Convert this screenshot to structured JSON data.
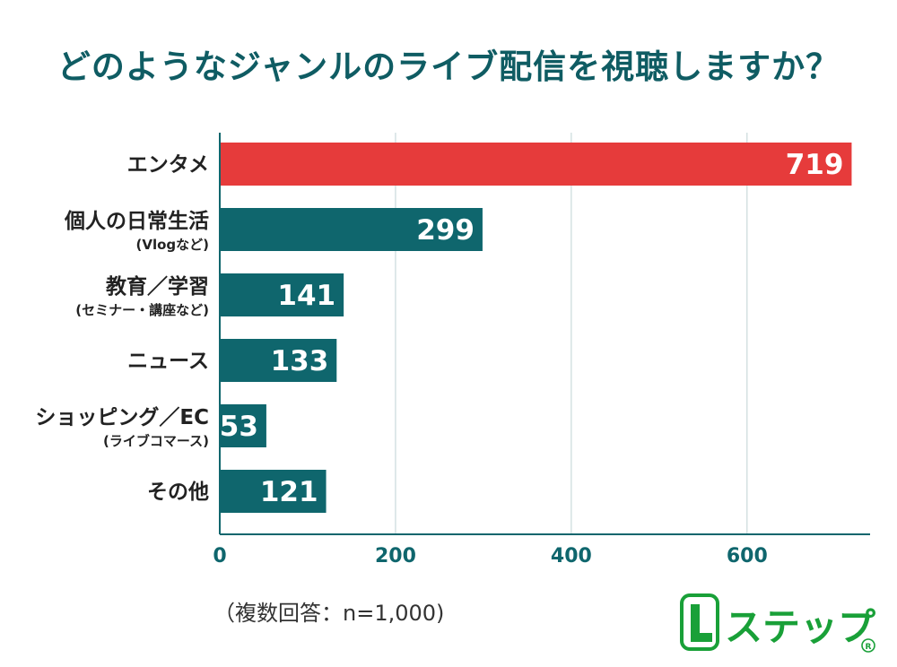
{
  "title": "どのようなジャンルのライブ配信を視聴しますか？",
  "note": "（複数回答：n=1,000)",
  "logo_text": "Lステップ",
  "colors": {
    "highlight": "#e63b3b",
    "bar": "#0f666d",
    "title": "#0f5c63",
    "axis": "#0f666d"
  },
  "chart_data": {
    "type": "bar",
    "orientation": "horizontal",
    "categories": [
      {
        "label": "エンタメ",
        "sub": ""
      },
      {
        "label": "個人の日常生活",
        "sub": "(Vlogなど)"
      },
      {
        "label": "教育／学習",
        "sub": "(セミナー・講座など)"
      },
      {
        "label": "ニュース",
        "sub": ""
      },
      {
        "label": "ショッピング／EC",
        "sub": "(ライブコマース)"
      },
      {
        "label": "その他",
        "sub": ""
      }
    ],
    "values": [
      719,
      299,
      141,
      133,
      53,
      121
    ],
    "highlight_index": 0,
    "xlim": [
      0,
      740
    ],
    "xticks": [
      0,
      200,
      400,
      600
    ],
    "grid": "vertical",
    "legend": "none"
  }
}
